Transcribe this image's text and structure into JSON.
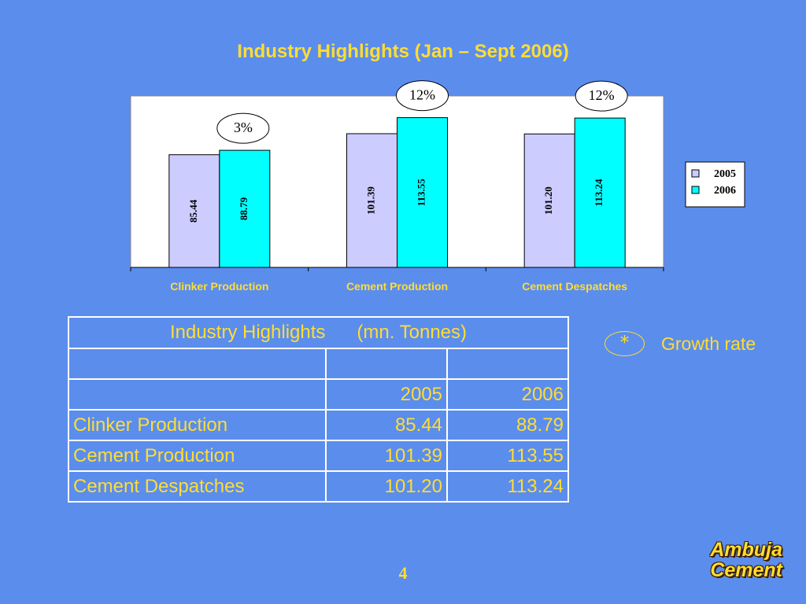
{
  "title": "Industry Highlights (Jan – Sept 2006)",
  "chart_data": {
    "type": "bar",
    "categories": [
      "Clinker Production",
      "Cement Production",
      "Cement Despatches"
    ],
    "series": [
      {
        "name": "2005",
        "values": [
          85.44,
          101.39,
          101.2
        ],
        "labels": [
          "85.44",
          "101.39",
          "101.20"
        ],
        "color": "#ccccff"
      },
      {
        "name": "2006",
        "values": [
          88.79,
          113.55,
          113.24
        ],
        "labels": [
          "88.79",
          "113.55",
          "113.24"
        ],
        "color": "#00ffff"
      }
    ],
    "growth_labels": [
      "3%",
      "12%",
      "12%"
    ],
    "ylim": [
      0,
      130
    ],
    "legend_position": "right",
    "grid": false
  },
  "table": {
    "header": "Industry Highlights      (mn. Tonnes)",
    "year_headers": [
      "2005",
      "2006"
    ],
    "rows": [
      {
        "label": "Clinker Production",
        "v2005": "85.44",
        "v2006": "88.79"
      },
      {
        "label": "Cement Production",
        "v2005": "101.39",
        "v2006": "113.55"
      },
      {
        "label": "Cement Despatches",
        "v2005": "101.20",
        "v2006": "113.24"
      }
    ]
  },
  "note": {
    "symbol": "*",
    "text": "Growth rate"
  },
  "page_number": "4",
  "brand": {
    "line1": "Ambuja",
    "line2": "Cement"
  },
  "colors": {
    "background": "#5b8ded",
    "accent_text": "#ffdd33"
  }
}
